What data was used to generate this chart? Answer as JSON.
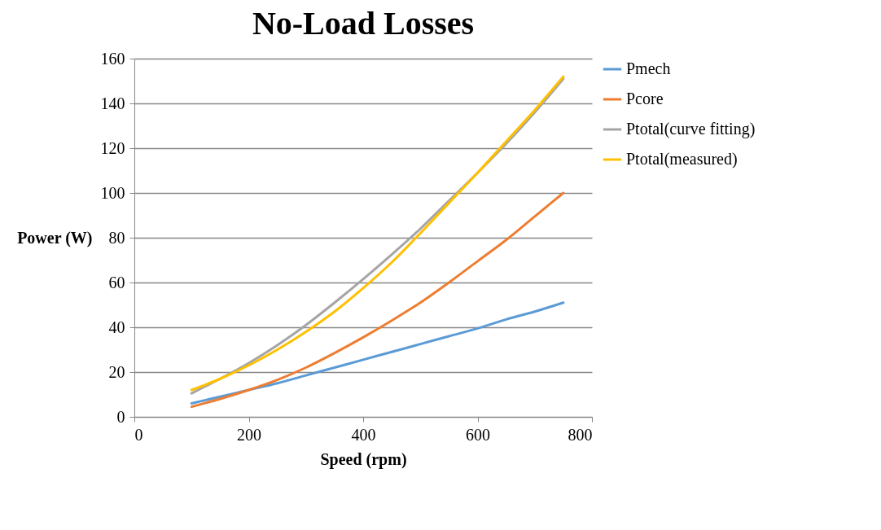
{
  "chart_data": {
    "type": "line",
    "title": "No-Load Losses",
    "xlabel": "Speed (rpm)",
    "ylabel": "Power (W)",
    "x": [
      100,
      150,
      200,
      250,
      300,
      350,
      400,
      450,
      500,
      550,
      600,
      650,
      700,
      750
    ],
    "series": [
      {
        "name": "Pmech",
        "color": "#5b9bd5",
        "values": [
          6,
          9,
          12,
          15,
          18.5,
          22,
          25.5,
          29,
          32.5,
          36,
          39.5,
          43.5,
          47,
          51
        ]
      },
      {
        "name": "Pcore",
        "color": "#ed7d31",
        "values": [
          4.5,
          8,
          12,
          16.5,
          22,
          28.5,
          35.5,
          43,
          51,
          60,
          69.5,
          79,
          89.5,
          100
        ]
      },
      {
        "name": "Ptotal(curve fitting)",
        "color": "#a5a5a5",
        "values": [
          10.5,
          17,
          24,
          32,
          41,
          51,
          61.5,
          72.5,
          84,
          96.5,
          109,
          122,
          136,
          151
        ]
      },
      {
        "name": "Ptotal(measured)",
        "color": "#ffc000",
        "values": [
          12,
          17,
          23,
          30,
          38,
          47,
          57.5,
          69,
          82,
          95.5,
          109,
          123,
          137,
          152
        ]
      }
    ],
    "xlim": [
      0,
      800
    ],
    "xticks": [
      0,
      200,
      400,
      600,
      800
    ],
    "ylim": [
      0,
      160
    ],
    "yticks": [
      0,
      20,
      40,
      60,
      80,
      100,
      120,
      140,
      160
    ],
    "grid": "y",
    "legend": "right",
    "marker": "none",
    "line_style": "solid"
  }
}
